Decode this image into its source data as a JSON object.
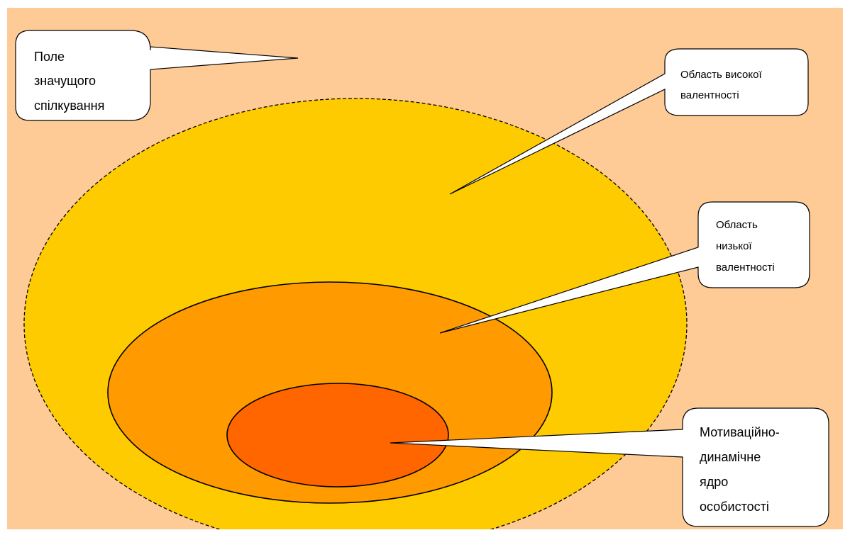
{
  "diagram": {
    "colors": {
      "field": "#fecb96",
      "high_valence": "#fecb00",
      "low_valence": "#ff9a00",
      "core": "#ff6600",
      "outline": "#000000",
      "callout_fill": "#ffffff"
    },
    "callouts": {
      "field": {
        "line1": "Поле",
        "line2": "значущого",
        "line3": "спілкування"
      },
      "high": {
        "line1": "Область високої",
        "line2": "валентності"
      },
      "low": {
        "line1": "Область",
        "line2": "низької",
        "line3": "валентності"
      },
      "core": {
        "line1": "Мотиваційно-",
        "line2": "динамічне",
        "line3": "ядро",
        "line4": "особистості"
      }
    }
  }
}
